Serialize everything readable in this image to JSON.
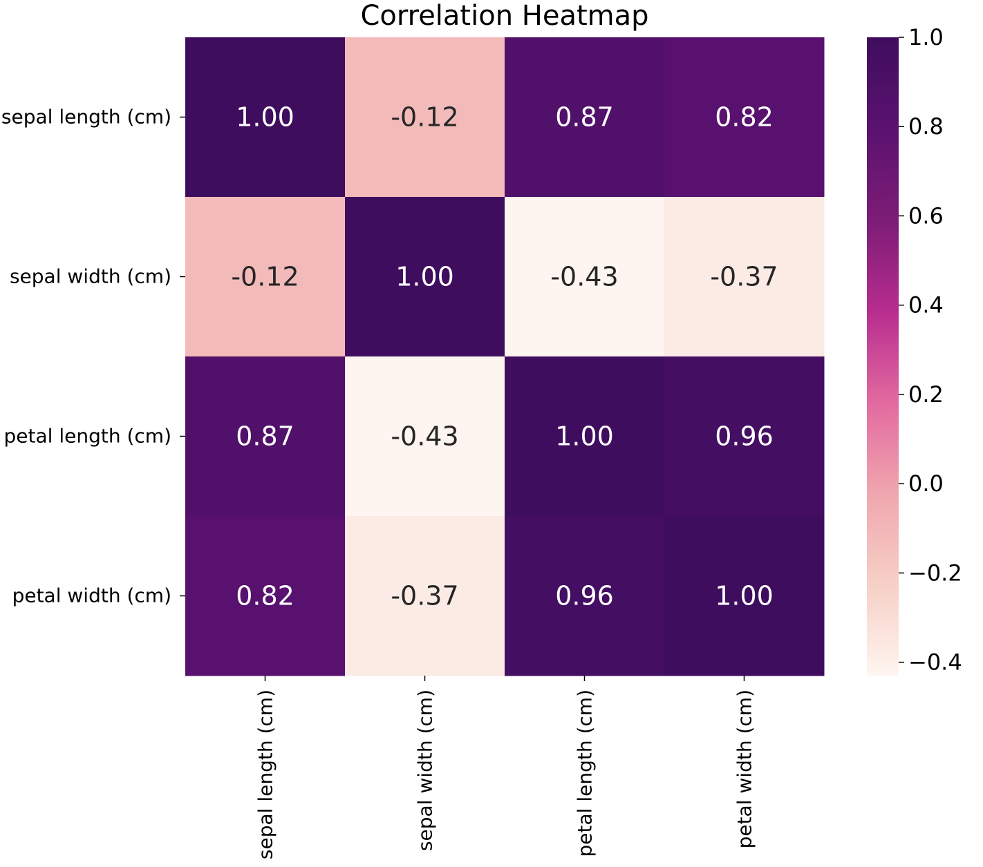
{
  "chart_data": {
    "type": "heatmap",
    "title": "Correlation Heatmap",
    "rows": [
      "sepal length (cm)",
      "sepal width (cm)",
      "petal length (cm)",
      "petal width (cm)"
    ],
    "columns": [
      "sepal length (cm)",
      "sepal width (cm)",
      "petal length (cm)",
      "petal width (cm)"
    ],
    "values": [
      [
        1.0,
        -0.12,
        0.87,
        0.82
      ],
      [
        -0.12,
        1.0,
        -0.43,
        -0.37
      ],
      [
        0.87,
        -0.43,
        1.0,
        0.96
      ],
      [
        0.82,
        -0.37,
        0.96,
        1.0
      ]
    ],
    "value_labels": [
      [
        "1.00",
        "-0.12",
        "0.87",
        "0.82"
      ],
      [
        "-0.12",
        "1.00",
        "-0.43",
        "-0.37"
      ],
      [
        "0.87",
        "-0.43",
        "1.00",
        "0.96"
      ],
      [
        "0.82",
        "-0.37",
        "0.96",
        "1.00"
      ]
    ],
    "colorbar": {
      "range": [
        -0.43,
        1.0
      ],
      "ticks": [
        1.0,
        0.8,
        0.6,
        0.4,
        0.2,
        0.0,
        -0.2,
        -0.4
      ],
      "tick_labels": [
        "1.0",
        "0.8",
        "0.6",
        "0.4",
        "0.2",
        "0.0",
        "−0.2",
        "−0.4"
      ]
    },
    "colormap": [
      "#fff5f0",
      "#f6d0c6",
      "#f0a6ae",
      "#e2699f",
      "#b72d8f",
      "#7c1c76",
      "#5b1270",
      "#3f0d5e"
    ],
    "annotation_colors": {
      "light": "#ffffff",
      "dark": "#262626"
    },
    "grid": false,
    "legend": "colorbar-right"
  }
}
